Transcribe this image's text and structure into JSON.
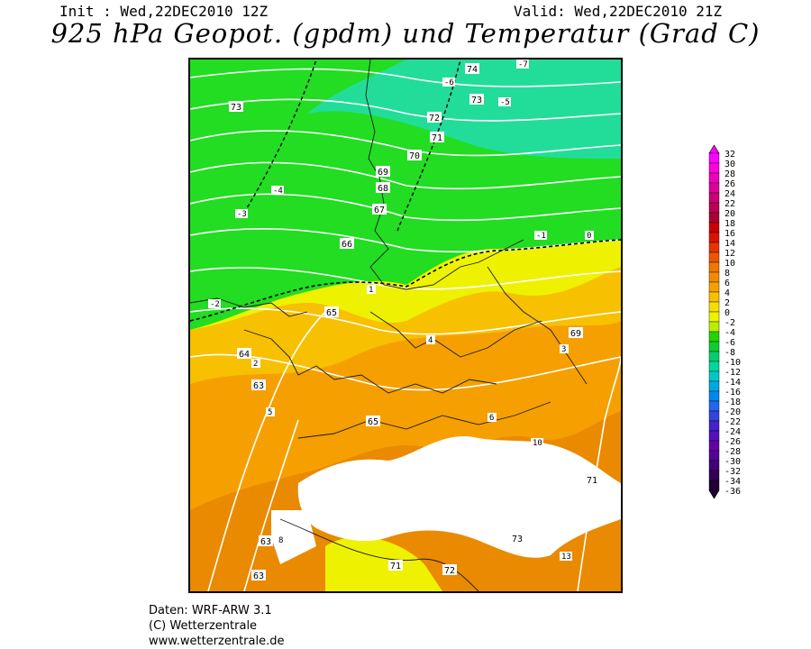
{
  "header": {
    "init": "Init : Wed,22DEC2010 12Z",
    "valid": "Valid: Wed,22DEC2010 21Z",
    "title": "925 hPa Geopot. (gpdm) und Temperatur (Grad C)"
  },
  "legend": {
    "labels": [
      "32",
      "30",
      "28",
      "26",
      "24",
      "22",
      "20",
      "18",
      "16",
      "14",
      "12",
      "10",
      "8",
      "6",
      "4",
      "2",
      "0",
      "-2",
      "-4",
      "-6",
      "-8",
      "-10",
      "-12",
      "-14",
      "-16",
      "-18",
      "-20",
      "-22",
      "-24",
      "-26",
      "-28",
      "-30",
      "-32",
      "-34",
      "-36"
    ],
    "colors": [
      "#ff00ff",
      "#ff00dd",
      "#ee00bb",
      "#dd0099",
      "#cc0077",
      "#bb0055",
      "#aa0033",
      "#cc0000",
      "#dd1100",
      "#e63300",
      "#ee5500",
      "#f07700",
      "#f28a00",
      "#f5a000",
      "#f7c000",
      "#f4e000",
      "#eef200",
      "#b8f000",
      "#22d400",
      "#10cc30",
      "#00d070",
      "#00d8a0",
      "#00c8c8",
      "#00a8e0",
      "#0088ee",
      "#2266ee",
      "#3344dd",
      "#4422cc",
      "#5511bb",
      "#6600aa",
      "#550099",
      "#440077",
      "#330055",
      "#220033"
    ]
  },
  "map": {
    "geopotential_labels": [
      "74",
      "73",
      "72",
      "71",
      "70",
      "69",
      "68",
      "67",
      "66",
      "65",
      "64",
      "63"
    ],
    "temperature_labels": [
      "-7",
      "-6",
      "-5",
      "-4",
      "-3",
      "-2",
      "-1",
      "0",
      "1",
      "2",
      "3",
      "4",
      "5",
      "6",
      "8",
      "10",
      "13"
    ]
  },
  "footer": {
    "line1": "Daten: WRF-ARW 3.1",
    "line2": "(C) Wetterzentrale",
    "line3": "www.wetterzentrale.de"
  },
  "colors": {
    "green_cold": "#22dd22",
    "green_teal": "#22dd99",
    "yellow": "#eef200",
    "orange_light": "#f7c000",
    "orange": "#f5a000",
    "orange_dark": "#e98a00",
    "terrain_mask": "#ffffff"
  }
}
